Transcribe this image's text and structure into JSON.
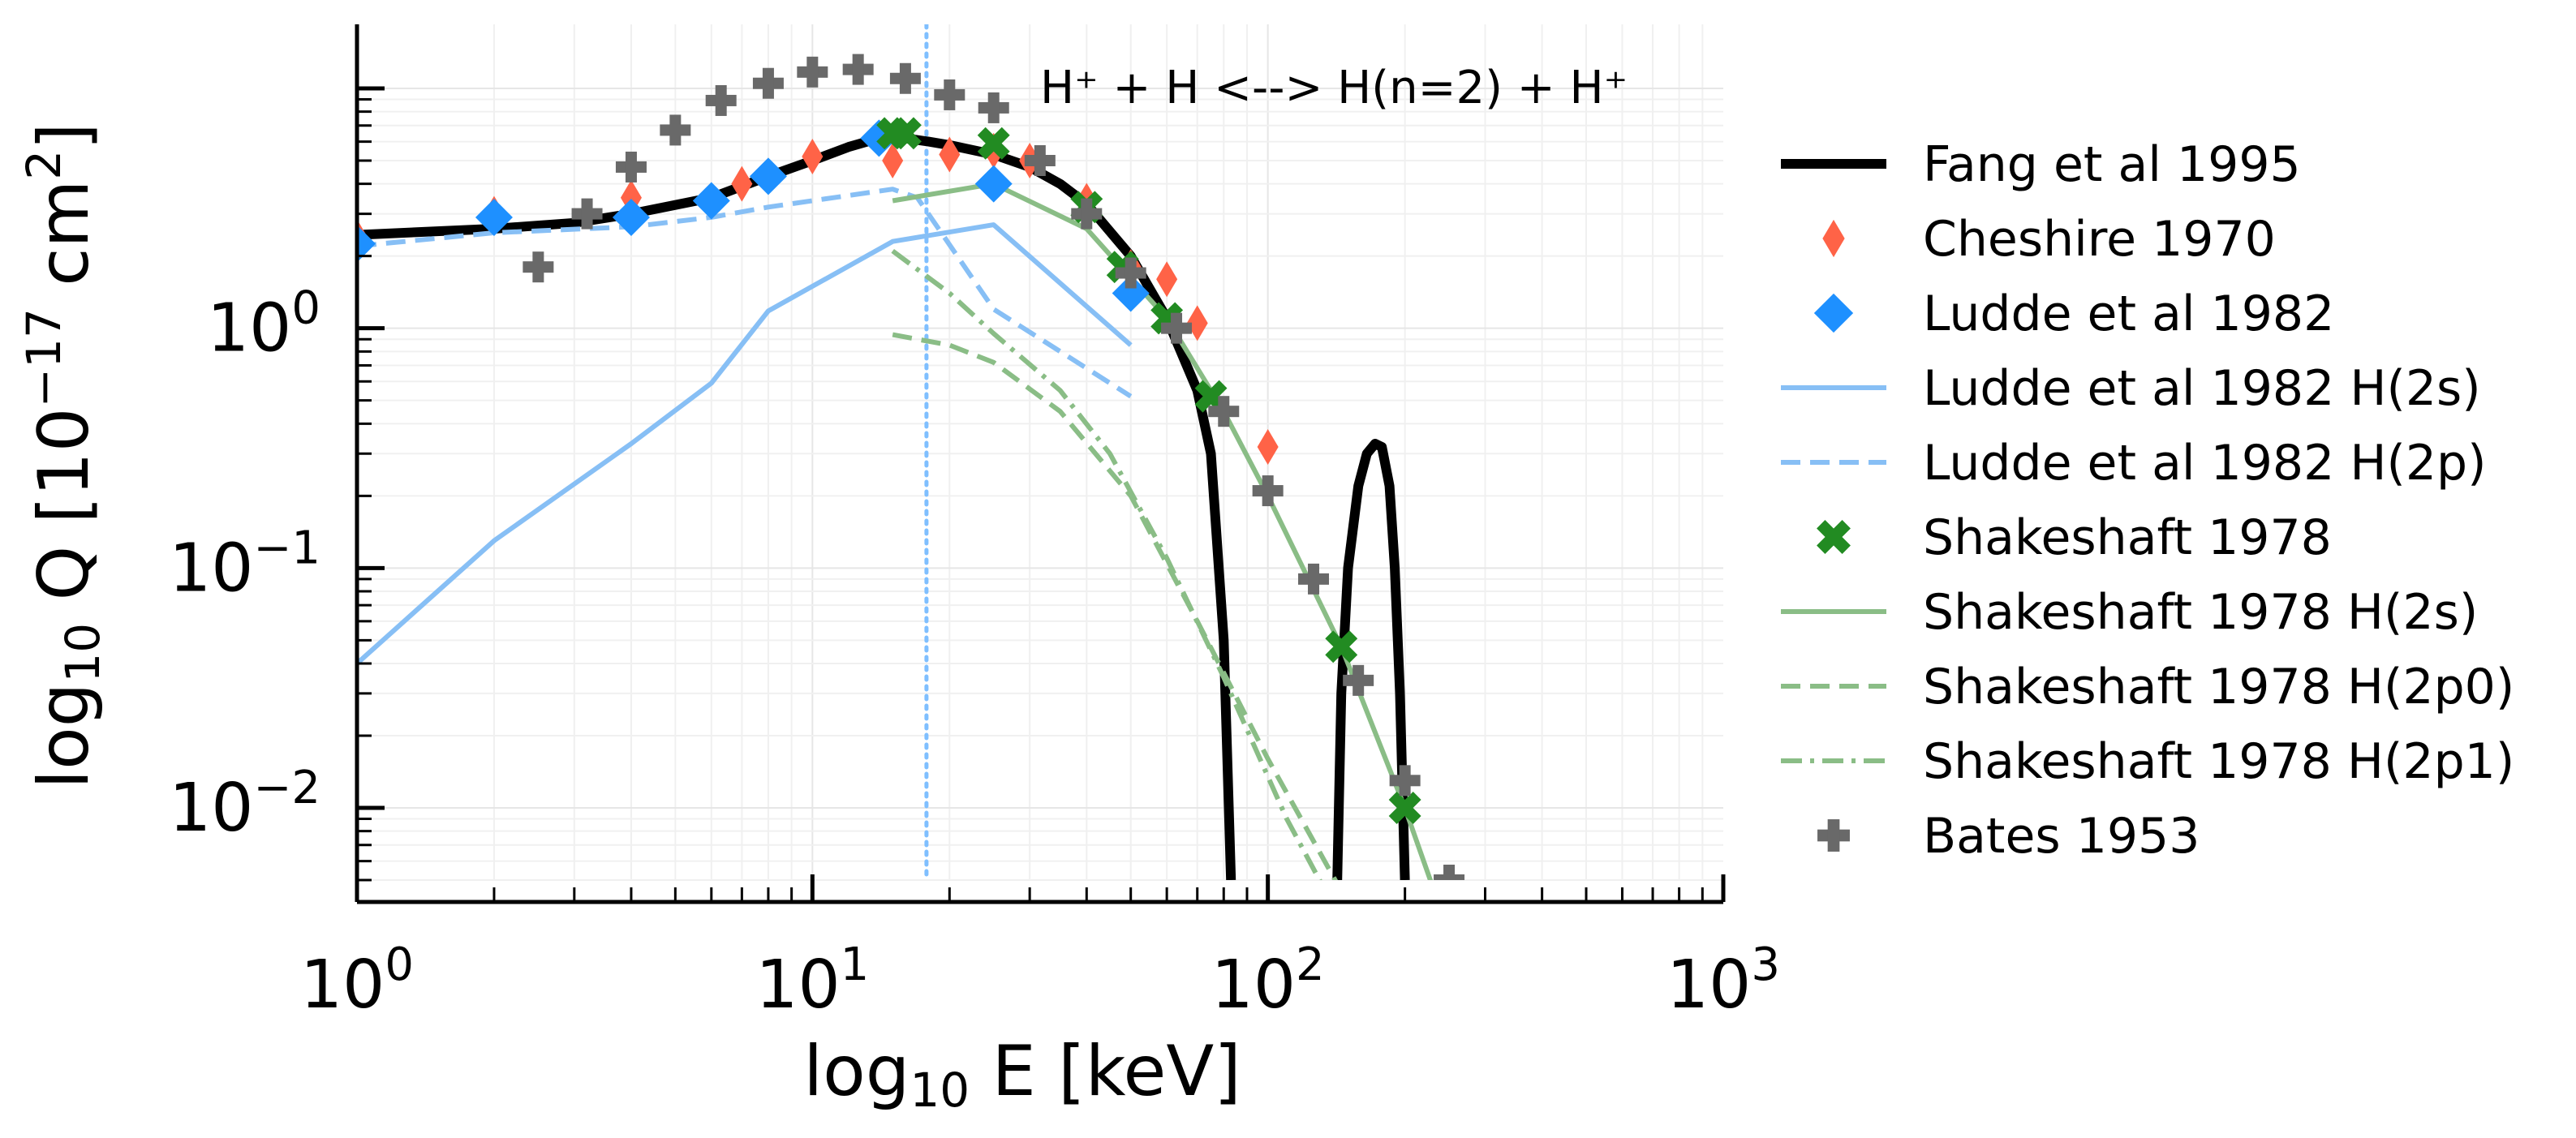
{
  "chart_data": {
    "type": "line",
    "annotation": "H⁺ + H <--> H(n=2) + H⁺",
    "xlabel": {
      "prefix": "log",
      "sub": "10",
      "rest": " E [keV]"
    },
    "ylabel": {
      "prefix": "log",
      "sub": "10",
      "mid": " Q [10",
      "sup1": "−17",
      "mid2": " cm",
      "sup2": "2",
      "end": "]"
    },
    "x_scale": "log",
    "y_scale": "log",
    "xlim": [
      1,
      1000
    ],
    "ylim": [
      0.005,
      25
    ],
    "grid": true,
    "vline": {
      "x": 17.8,
      "color": "#7fbfff",
      "style": "dotted"
    },
    "x_ticks": [
      {
        "value": 1,
        "base": "10",
        "exp": "0"
      },
      {
        "value": 10,
        "base": "10",
        "exp": "1"
      },
      {
        "value": 100,
        "base": "10",
        "exp": "2"
      },
      {
        "value": 1000,
        "base": "10",
        "exp": "3"
      }
    ],
    "y_ticks": [
      {
        "value": 0.01,
        "base": "10",
        "exp": "−2"
      },
      {
        "value": 0.1,
        "base": "10",
        "exp": "−1"
      },
      {
        "value": 1,
        "base": "10",
        "exp": "0"
      }
    ],
    "legend_position": "right",
    "series": [
      {
        "name": "Fang et al 1995",
        "kind": "line",
        "color": "#000000",
        "dash": "solid",
        "width": 12,
        "x": [
          1,
          2,
          3,
          4,
          6,
          8,
          10,
          12,
          14,
          15,
          16,
          18,
          20,
          25,
          30,
          35,
          40,
          50,
          60,
          70,
          75,
          80,
          83
        ],
        "y": [
          2.45,
          2.6,
          2.75,
          3.0,
          3.5,
          4.3,
          5.0,
          5.7,
          6.2,
          6.3,
          6.2,
          6.0,
          5.8,
          5.3,
          4.7,
          4.0,
          3.3,
          2.0,
          1.1,
          0.55,
          0.3,
          0.05,
          0.005
        ]
      },
      {
        "name": "",
        "kind": "line",
        "color": "#000000",
        "dash": "solid",
        "width": 12,
        "x": [
          142,
          145,
          150,
          158,
          165,
          172,
          178,
          185,
          190,
          195,
          200
        ],
        "y": [
          0.005,
          0.03,
          0.1,
          0.22,
          0.3,
          0.33,
          0.32,
          0.22,
          0.1,
          0.03,
          0.005
        ]
      },
      {
        "name": "Cheshire 1970",
        "kind": "marker",
        "marker": "thin-diamond",
        "color": "#ff6347",
        "x": [
          1,
          2,
          4,
          7,
          10,
          15,
          20,
          25,
          30,
          40,
          50,
          60,
          70,
          100
        ],
        "y": [
          2.4,
          3.0,
          3.5,
          4.0,
          5.2,
          5.0,
          5.3,
          5.5,
          5.0,
          3.4,
          1.8,
          1.6,
          1.05,
          0.32
        ]
      },
      {
        "name": "Ludde et al 1982",
        "kind": "marker",
        "marker": "diamond",
        "color": "#1e90ff",
        "x": [
          1,
          2,
          4,
          6,
          8,
          14,
          25,
          50
        ],
        "y": [
          2.25,
          2.9,
          2.9,
          3.4,
          4.3,
          6.2,
          4.0,
          1.4
        ]
      },
      {
        "name": "Ludde et al 1982 H(2s)",
        "kind": "line",
        "color": "#87bff5",
        "dash": "solid",
        "width": 6,
        "x": [
          1,
          2,
          4,
          6,
          8,
          15,
          25,
          50
        ],
        "y": [
          0.04,
          0.13,
          0.33,
          0.59,
          1.18,
          2.3,
          2.7,
          0.85
        ]
      },
      {
        "name": "Ludde et al 1982 H(2p)",
        "kind": "line",
        "color": "#87bff5",
        "dash": "dashed",
        "width": 6,
        "x": [
          1,
          2,
          4,
          6,
          8,
          15,
          17,
          25,
          50
        ],
        "y": [
          2.2,
          2.5,
          2.65,
          2.9,
          3.2,
          3.8,
          3.5,
          1.2,
          0.52
        ]
      },
      {
        "name": "Shakeshaft 1978",
        "kind": "marker",
        "marker": "x-thick",
        "color": "#228b22",
        "x": [
          15,
          16,
          25,
          40,
          48,
          60,
          75,
          145,
          200
        ],
        "y": [
          6.5,
          6.5,
          5.9,
          3.2,
          1.8,
          1.1,
          0.52,
          0.047,
          0.01
        ]
      },
      {
        "name": "Shakeshaft 1978 H(2s)",
        "kind": "line",
        "color": "#8abd86",
        "dash": "solid",
        "width": 6,
        "x": [
          15,
          25,
          40,
          60,
          80,
          100,
          145,
          200,
          250
        ],
        "y": [
          3.4,
          4.0,
          2.6,
          1.1,
          0.45,
          0.2,
          0.047,
          0.01,
          0.003
        ]
      },
      {
        "name": "Shakeshaft 1978 H(2p0)",
        "kind": "line",
        "color": "#8abd86",
        "dash": "dashed",
        "width": 6,
        "x": [
          15,
          20,
          25,
          35,
          50,
          70,
          100,
          150
        ],
        "y": [
          0.94,
          0.85,
          0.72,
          0.45,
          0.2,
          0.06,
          0.016,
          0.004
        ]
      },
      {
        "name": "Shakeshaft 1978 H(2p1)",
        "kind": "line",
        "color": "#8abd86",
        "dash": "dashdot",
        "width": 6,
        "x": [
          15,
          20,
          25,
          35,
          45,
          60,
          80,
          110,
          150
        ],
        "y": [
          2.1,
          1.4,
          0.95,
          0.55,
          0.3,
          0.11,
          0.035,
          0.009,
          0.003
        ]
      },
      {
        "name": "Bates 1953",
        "kind": "marker",
        "marker": "plus-thick",
        "color": "#696969",
        "x": [
          2.5,
          3.2,
          4,
          5,
          6.3,
          8,
          10,
          12.6,
          16,
          20,
          25,
          31.6,
          40,
          50,
          63,
          80,
          100,
          126,
          158,
          200,
          250
        ],
        "y": [
          1.8,
          3.0,
          4.7,
          6.7,
          8.9,
          10.5,
          11.7,
          12.0,
          11.0,
          9.4,
          8.3,
          5.0,
          3.0,
          1.7,
          1.0,
          0.45,
          0.21,
          0.09,
          0.034,
          0.013,
          0.005
        ]
      }
    ]
  }
}
